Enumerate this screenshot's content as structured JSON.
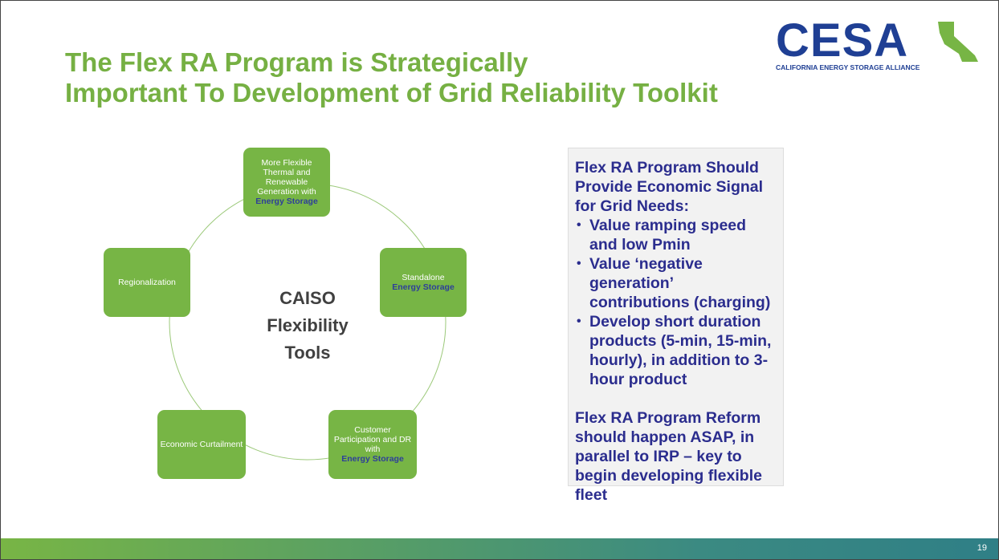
{
  "header": {
    "title_lines": [
      "The Flex RA Program is Strategically",
      "Important To Development of Grid Reliability Toolkit"
    ]
  },
  "logo": {
    "name": "CESA",
    "tagline": "CALIFORNIA ENERGY STORAGE ALLIANCE"
  },
  "diagram": {
    "center": [
      "CAISO",
      "Flexibility",
      "Tools"
    ],
    "nodes": [
      {
        "text": "More Flexible Thermal and Renewable Generation with",
        "highlight": "Energy Storage"
      },
      {
        "text": "Standalone",
        "highlight": "Energy Storage"
      },
      {
        "text": "Customer Participation and DR with",
        "highlight": "Energy Storage"
      },
      {
        "text": "Economic Curtailment"
      },
      {
        "text": "Regionalization"
      }
    ]
  },
  "callout": {
    "heading": "Flex RA Program Should Provide Economic Signal for Grid Needs:",
    "bullets": [
      "Value ramping speed and low Pmin",
      "Value ‘negative generation’ contributions (charging)",
      "Develop short duration products (5-min, 15-min, hourly), in addition to 3-hour product"
    ],
    "closing": "Flex RA Program Reform should happen ASAP, in parallel to IRP – key to begin developing flexible fleet"
  },
  "footer": {
    "page_number": "19"
  }
}
